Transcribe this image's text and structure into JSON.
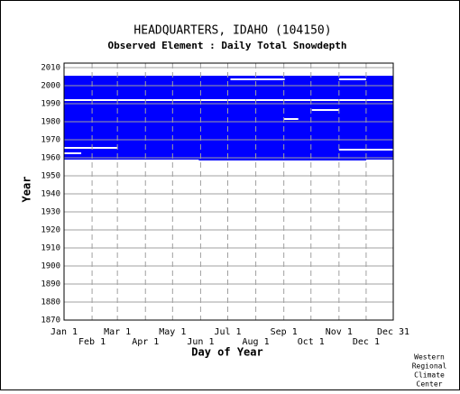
{
  "chart_data": {
    "type": "availability",
    "title": "HEADQUARTERS, IDAHO   (104150)",
    "subtitle": "Observed Element : Daily Total Snowdepth",
    "xlabel": "Day of Year",
    "ylabel": "Year",
    "credit": [
      "Western",
      "Regional",
      "Climate",
      "Center"
    ],
    "color": "#0000ff",
    "xlim": [
      1,
      365
    ],
    "ylim": [
      1870,
      2012.5
    ],
    "xticks": [
      {
        "value": 1,
        "label": "Jan 1"
      },
      {
        "value": 32,
        "label": "Feb 1"
      },
      {
        "value": 60,
        "label": "Mar 1"
      },
      {
        "value": 91,
        "label": "Apr 1"
      },
      {
        "value": 121,
        "label": "May 1"
      },
      {
        "value": 152,
        "label": "Jun 1"
      },
      {
        "value": 182,
        "label": "Jul 1"
      },
      {
        "value": 213,
        "label": "Aug 1"
      },
      {
        "value": 244,
        "label": "Sep 1"
      },
      {
        "value": 274,
        "label": "Oct 1"
      },
      {
        "value": 305,
        "label": "Nov 1"
      },
      {
        "value": 335,
        "label": "Dec 1"
      },
      {
        "value": 365,
        "label": "Dec 31"
      }
    ],
    "yticks": [
      1870,
      1880,
      1890,
      1900,
      1910,
      1920,
      1930,
      1940,
      1950,
      1960,
      1970,
      1980,
      1990,
      2000,
      2010
    ],
    "records": [
      {
        "days": [
          1,
          365
        ],
        "years": [
          1958.5,
          1991.5
        ]
      },
      {
        "days": [
          1,
          365
        ],
        "years": [
          1992.5,
          2005.5
        ]
      }
    ],
    "gaps": [
      {
        "days": [
          1,
          60
        ],
        "years": [
          1965,
          1966
        ]
      },
      {
        "days": [
          1,
          20
        ],
        "years": [
          1962,
          1963
        ]
      },
      {
        "days": [
          305,
          365
        ],
        "years": [
          1964,
          1965
        ]
      },
      {
        "days": [
          244,
          260
        ],
        "years": [
          1981,
          1982
        ]
      },
      {
        "days": [
          275,
          305
        ],
        "years": [
          1986,
          1987
        ]
      },
      {
        "days": [
          185,
          245
        ],
        "years": [
          2003,
          2004
        ]
      },
      {
        "days": [
          305,
          335
        ],
        "years": [
          2003,
          2004
        ]
      },
      {
        "days": [
          1,
          150
        ],
        "years": [
          1958.5,
          1959
        ]
      },
      {
        "days": [
          335,
          365
        ],
        "years": [
          1958.5,
          1959
        ]
      }
    ]
  }
}
